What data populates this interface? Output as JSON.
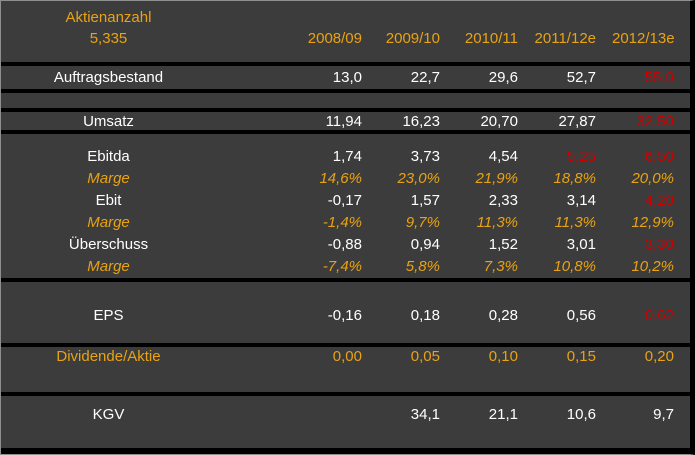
{
  "colors": {
    "background": "#3C3C3C",
    "separator": "#000000",
    "orange": "#E9A312",
    "red": "#CE0000",
    "white": "#FFFFFF",
    "edge": "#8F8F8F"
  },
  "header": {
    "label_line1": "Aktienanzahl",
    "label_line2": "5,335",
    "columns": [
      "2008/09",
      "2009/10",
      "2010/11",
      "2011/12e",
      "2012/13e"
    ]
  },
  "rows": {
    "auftragsbestand": {
      "label": "Auftragsbestand",
      "label_c": "w",
      "values": [
        {
          "t": "13,0",
          "c": "w"
        },
        {
          "t": "22,7",
          "c": "w"
        },
        {
          "t": "29,6",
          "c": "w"
        },
        {
          "t": "52,7",
          "c": "w"
        },
        {
          "t": "55,0",
          "c": "r"
        }
      ]
    },
    "umsatz": {
      "label": "Umsatz",
      "label_c": "w",
      "values": [
        {
          "t": "11,94",
          "c": "w"
        },
        {
          "t": "16,23",
          "c": "w"
        },
        {
          "t": "20,70",
          "c": "w"
        },
        {
          "t": "27,87",
          "c": "w"
        },
        {
          "t": "32,50",
          "c": "r"
        }
      ]
    },
    "ebitda": {
      "label": "Ebitda",
      "label_c": "w",
      "values": [
        {
          "t": "1,74",
          "c": "w"
        },
        {
          "t": "3,73",
          "c": "w"
        },
        {
          "t": "4,54",
          "c": "w"
        },
        {
          "t": "5,25",
          "c": "r"
        },
        {
          "t": "6,50",
          "c": "r"
        }
      ]
    },
    "marge_ebitda": {
      "label": "Marge",
      "label_c": "o",
      "values": [
        {
          "t": "14,6%",
          "c": "o"
        },
        {
          "t": "23,0%",
          "c": "o"
        },
        {
          "t": "21,9%",
          "c": "o"
        },
        {
          "t": "18,8%",
          "c": "o"
        },
        {
          "t": "20,0%",
          "c": "o"
        }
      ]
    },
    "ebit": {
      "label": "Ebit",
      "label_c": "w",
      "values": [
        {
          "t": "-0,17",
          "c": "w"
        },
        {
          "t": "1,57",
          "c": "w"
        },
        {
          "t": "2,33",
          "c": "w"
        },
        {
          "t": "3,14",
          "c": "w"
        },
        {
          "t": "4,20",
          "c": "r"
        }
      ]
    },
    "marge_ebit": {
      "label": "Marge",
      "label_c": "o",
      "values": [
        {
          "t": "-1,4%",
          "c": "o"
        },
        {
          "t": "9,7%",
          "c": "o"
        },
        {
          "t": "11,3%",
          "c": "o"
        },
        {
          "t": "11,3%",
          "c": "o"
        },
        {
          "t": "12,9%",
          "c": "o"
        }
      ]
    },
    "ueberschuss": {
      "label": "Überschuss",
      "label_c": "w",
      "values": [
        {
          "t": "-0,88",
          "c": "w"
        },
        {
          "t": "0,94",
          "c": "w"
        },
        {
          "t": "1,52",
          "c": "w"
        },
        {
          "t": "3,01",
          "c": "w"
        },
        {
          "t": "3,30",
          "c": "r"
        }
      ]
    },
    "marge_ueberschuss": {
      "label": "Marge",
      "label_c": "o",
      "values": [
        {
          "t": "-7,4%",
          "c": "o"
        },
        {
          "t": "5,8%",
          "c": "o"
        },
        {
          "t": "7,3%",
          "c": "o"
        },
        {
          "t": "10,8%",
          "c": "o"
        },
        {
          "t": "10,2%",
          "c": "o"
        }
      ]
    },
    "eps": {
      "label": "EPS",
      "label_c": "w",
      "values": [
        {
          "t": "-0,16",
          "c": "w"
        },
        {
          "t": "0,18",
          "c": "w"
        },
        {
          "t": "0,28",
          "c": "w"
        },
        {
          "t": "0,56",
          "c": "w"
        },
        {
          "t": "0,62",
          "c": "r"
        }
      ]
    },
    "dividende": {
      "label": "Dividende/Aktie",
      "label_c": "o",
      "values": [
        {
          "t": "0,00",
          "c": "o"
        },
        {
          "t": "0,05",
          "c": "o"
        },
        {
          "t": "0,10",
          "c": "o"
        },
        {
          "t": "0,15",
          "c": "o"
        },
        {
          "t": "0,20",
          "c": "o"
        }
      ]
    },
    "kgv": {
      "label": "KGV",
      "label_c": "w",
      "values": [
        {
          "t": "",
          "c": "w"
        },
        {
          "t": "34,1",
          "c": "w"
        },
        {
          "t": "21,1",
          "c": "w"
        },
        {
          "t": "10,6",
          "c": "w"
        },
        {
          "t": "9,7",
          "c": "w"
        }
      ]
    }
  },
  "chart_data": {
    "type": "table",
    "categories": [
      "2008/09",
      "2009/10",
      "2010/11",
      "2011/12e",
      "2012/13e"
    ],
    "share_count": {
      "label": "Aktienanzahl",
      "value": 5.335
    },
    "series": [
      {
        "name": "Auftragsbestand",
        "values": [
          13.0,
          22.7,
          29.6,
          52.7,
          55.0
        ]
      },
      {
        "name": "Umsatz",
        "values": [
          11.94,
          16.23,
          20.7,
          27.87,
          32.5
        ]
      },
      {
        "name": "Ebitda",
        "values": [
          1.74,
          3.73,
          4.54,
          5.25,
          6.5
        ]
      },
      {
        "name": "Marge",
        "parent": "Ebitda",
        "unit": "%",
        "values": [
          14.6,
          23.0,
          21.9,
          18.8,
          20.0
        ]
      },
      {
        "name": "Ebit",
        "values": [
          -0.17,
          1.57,
          2.33,
          3.14,
          4.2
        ]
      },
      {
        "name": "Marge",
        "parent": "Ebit",
        "unit": "%",
        "values": [
          -1.4,
          9.7,
          11.3,
          11.3,
          12.9
        ]
      },
      {
        "name": "Überschuss",
        "values": [
          -0.88,
          0.94,
          1.52,
          3.01,
          3.3
        ]
      },
      {
        "name": "Marge",
        "parent": "Überschuss",
        "unit": "%",
        "values": [
          -7.4,
          5.8,
          7.3,
          10.8,
          10.2
        ]
      },
      {
        "name": "EPS",
        "values": [
          -0.16,
          0.18,
          0.28,
          0.56,
          0.62
        ]
      },
      {
        "name": "Dividende/Aktie",
        "values": [
          0.0,
          0.05,
          0.1,
          0.15,
          0.2
        ]
      },
      {
        "name": "KGV",
        "values": [
          null,
          34.1,
          21.1,
          10.6,
          9.7
        ]
      }
    ],
    "layout_hints": {
      "red_text_means": "estimated values",
      "orange_italic_rows": "margin rows",
      "background": "dark gray with black separator bands"
    }
  }
}
